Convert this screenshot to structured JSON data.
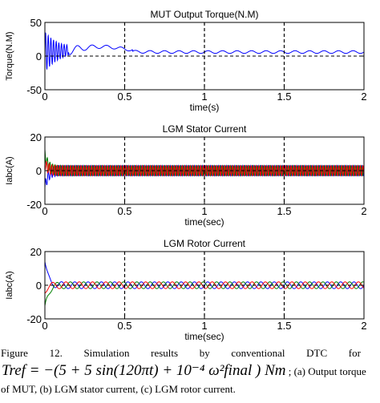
{
  "chart_data": [
    {
      "type": "line",
      "panel_label": "(a)",
      "title": "MUT Output Torque(N.M)",
      "ylabel": "Torque(N.M)",
      "xlabel": "time(s)",
      "xlim": [
        0,
        2
      ],
      "ylim": [
        -50,
        50
      ],
      "xticks": [
        "0",
        "0.5",
        "1",
        "1.5",
        "2"
      ],
      "yticks": [
        "50",
        "0",
        "-50"
      ],
      "vlines": [
        0.5,
        1.0,
        1.5
      ],
      "hline": 0,
      "series": [
        {
          "color": "#0000ff",
          "signal": "damped oscillation settling to steady value",
          "steady_value": 6,
          "initial_amplitude": 28,
          "steady_ripple": 2,
          "x": [
            0,
            0.1,
            0.2,
            0.3,
            0.4,
            0.5,
            0.6,
            0.8,
            1.0,
            1.2,
            1.4,
            1.6,
            1.8,
            2.0
          ],
          "y": [
            6,
            14,
            14,
            14,
            13,
            12,
            6,
            6,
            6,
            6,
            6,
            6,
            6,
            6
          ]
        }
      ]
    },
    {
      "type": "line",
      "panel_label": "(b)",
      "title": "LGM Stator Current",
      "ylabel": "Iabc(A)",
      "xlabel": "time(sec)",
      "xlim": [
        0,
        2
      ],
      "ylim": [
        -20,
        20
      ],
      "xticks": [
        "0",
        "0.5",
        "1",
        "1.5",
        "2"
      ],
      "yticks": [
        "20",
        "0",
        "-20"
      ],
      "vlines": [
        0.5,
        1.0,
        1.5
      ],
      "hline": 0,
      "series": [
        {
          "color": "#0000ff",
          "amplitude": 3,
          "phase_deg": 0,
          "transient_start": -10
        },
        {
          "color": "#008000",
          "amplitude": 3,
          "phase_deg": 120,
          "transient_start": 10
        },
        {
          "color": "#ff0000",
          "amplitude": 3,
          "phase_deg": 240,
          "transient_start": 4
        }
      ]
    },
    {
      "type": "line",
      "panel_label": "(c)",
      "title": "LGM Rotor Current",
      "ylabel": "Iabc(A)",
      "xlabel": "time(sec)",
      "xlim": [
        0,
        2
      ],
      "ylim": [
        -20,
        20
      ],
      "xticks": [
        "0",
        "0.5",
        "1",
        "1.5",
        "2"
      ],
      "yticks": [
        "20",
        "0",
        "-20"
      ],
      "vlines": [
        0.5,
        1.0,
        1.5
      ],
      "hline": 0,
      "series": [
        {
          "color": "#0000ff",
          "amplitude": 2,
          "phase_deg": 0,
          "transient_start": 14
        },
        {
          "color": "#008000",
          "amplitude": 2,
          "phase_deg": 120,
          "transient_start": -14
        },
        {
          "color": "#ff0000",
          "amplitude": 2,
          "phase_deg": 240,
          "transient_start": -3
        }
      ]
    }
  ],
  "caption": {
    "figure_label": "Figure",
    "figure_number": "12.",
    "words": [
      "Simulation",
      "results",
      "by",
      "conventional",
      "DTC",
      "for"
    ],
    "equation": "T_ref = −(5 + 5 sin(120πt) + 10^−4 ω²_final) Nm",
    "equation_display": "Tref = −(5 + 5 sin(120πt) + 10⁻⁴ ω²final ) Nm",
    "line2_tail": "; (a) Output torque",
    "line3": "of MUT, (b) LGM stator current, (c) LGM rotor current."
  }
}
